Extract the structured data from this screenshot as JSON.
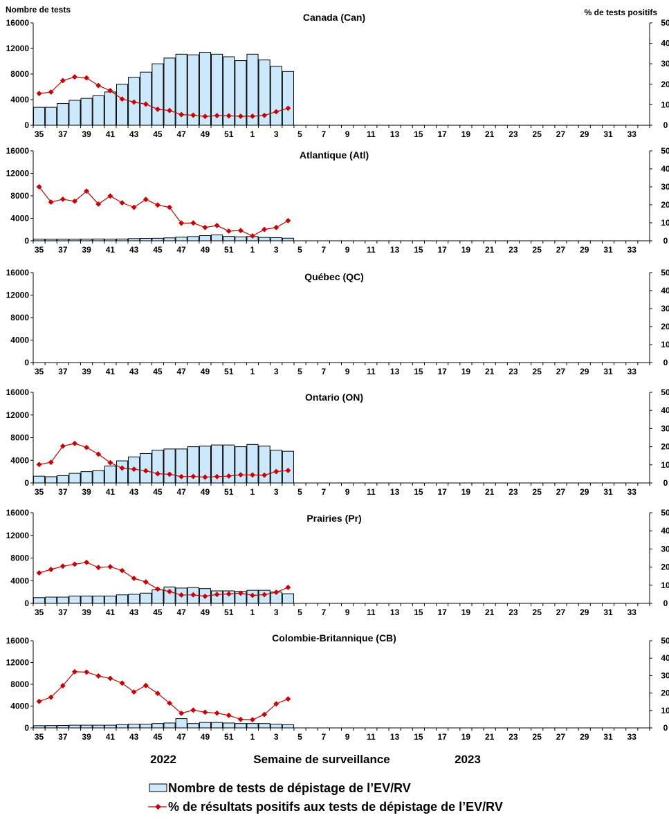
{
  "labels": {
    "left_axis": "Nombre de tests",
    "right_axis": "% de tests positifs",
    "year_left": "2022",
    "x_axis": "Semaine de surveillance",
    "year_right": "2023"
  },
  "legend": {
    "bars": "Nombre de tests de dépistage de l’EV/RV",
    "line": "% de résultats positifs aux tests de dépistage de l’EV/RV"
  },
  "colors": {
    "bar_fill": "#cce9fb",
    "bar_stroke": "#000000",
    "line": "#c00000",
    "marker": "#cc0000"
  },
  "week_ticks": [
    "35",
    "37",
    "39",
    "41",
    "43",
    "45",
    "47",
    "49",
    "51",
    "1",
    "3",
    "5",
    "7",
    "9",
    "11",
    "13",
    "15",
    "17",
    "19",
    "21",
    "23",
    "25",
    "27",
    "29",
    "31",
    "33"
  ],
  "left_ticks": [
    "0",
    "4000",
    "8000",
    "12000",
    "16000"
  ],
  "right_ticks": [
    "0",
    "10",
    "20",
    "30",
    "40",
    "50"
  ],
  "chart_data": [
    {
      "type": "bar+line",
      "title": "Canada (Can)",
      "weeks": [
        "35",
        "36",
        "37",
        "38",
        "39",
        "40",
        "41",
        "42",
        "43",
        "44",
        "45",
        "46",
        "47",
        "48",
        "49",
        "50",
        "51",
        "52",
        "1",
        "2",
        "3",
        "4"
      ],
      "tests": [
        2800,
        2800,
        3400,
        3900,
        4200,
        4600,
        5200,
        6400,
        7500,
        8300,
        9600,
        10500,
        11100,
        11000,
        11400,
        11100,
        10700,
        10100,
        11100,
        10200,
        9200,
        8400
      ],
      "pct_positive": [
        15.5,
        16.2,
        21.8,
        23.6,
        23.1,
        19.4,
        16.9,
        12.8,
        11.3,
        10.3,
        7.8,
        7.2,
        5.2,
        4.9,
        4.3,
        4.7,
        4.6,
        4.4,
        4.4,
        4.8,
        6.6,
        8.3
      ],
      "ylim_left": [
        0,
        16000
      ],
      "ylim_right": [
        0,
        50
      ]
    },
    {
      "type": "bar+line",
      "title": "Atlantique (Atl)",
      "weeks": [
        "35",
        "36",
        "37",
        "38",
        "39",
        "40",
        "41",
        "42",
        "43",
        "44",
        "45",
        "46",
        "47",
        "48",
        "49",
        "50",
        "51",
        "52",
        "1",
        "2",
        "3",
        "4"
      ],
      "tests": [
        300,
        280,
        290,
        280,
        300,
        320,
        300,
        320,
        390,
        430,
        450,
        520,
        650,
        750,
        920,
        1050,
        780,
        700,
        760,
        600,
        560,
        460
      ],
      "pct_positive": [
        30.0,
        21.5,
        23.1,
        22.0,
        27.6,
        20.4,
        24.9,
        21.1,
        18.6,
        23.0,
        19.9,
        18.6,
        9.8,
        9.9,
        7.4,
        8.5,
        5.4,
        5.7,
        2.7,
        6.3,
        7.4,
        11.2
      ],
      "ylim_left": [
        0,
        16000
      ],
      "ylim_right": [
        0,
        50
      ]
    },
    {
      "type": "bar+line",
      "title": "Québec (QC)",
      "weeks": [],
      "tests": [],
      "pct_positive": [],
      "ylim_left": [
        0,
        16000
      ],
      "ylim_right": [
        0,
        50
      ]
    },
    {
      "type": "bar+line",
      "title": "Ontario (ON)",
      "weeks": [
        "35",
        "36",
        "37",
        "38",
        "39",
        "40",
        "41",
        "42",
        "43",
        "44",
        "45",
        "46",
        "47",
        "48",
        "49",
        "50",
        "51",
        "52",
        "1",
        "2",
        "3",
        "4"
      ],
      "tests": [
        1200,
        1100,
        1300,
        1700,
        2000,
        2200,
        3000,
        3900,
        4600,
        5200,
        5800,
        6000,
        6000,
        6400,
        6500,
        6700,
        6700,
        6400,
        6800,
        6500,
        5800,
        5600
      ],
      "pct_positive": [
        10.2,
        11.4,
        20.3,
        21.8,
        19.6,
        15.9,
        11.2,
        8.2,
        7.6,
        6.7,
        5.1,
        4.8,
        3.5,
        3.6,
        3.2,
        3.5,
        3.8,
        4.5,
        4.4,
        4.3,
        6.3,
        6.9
      ],
      "ylim_left": [
        0,
        16000
      ],
      "ylim_right": [
        0,
        50
      ]
    },
    {
      "type": "bar+line",
      "title": "Prairies (Pr)",
      "weeks": [
        "35",
        "36",
        "37",
        "38",
        "39",
        "40",
        "41",
        "42",
        "43",
        "44",
        "45",
        "46",
        "47",
        "48",
        "49",
        "50",
        "51",
        "52",
        "1",
        "2",
        "3",
        "4"
      ],
      "tests": [
        1000,
        1100,
        1100,
        1300,
        1300,
        1300,
        1300,
        1500,
        1600,
        1800,
        2400,
        2900,
        2700,
        2800,
        2600,
        2200,
        2200,
        2100,
        2300,
        2300,
        2000,
        1700
      ],
      "pct_positive": [
        16.8,
        18.7,
        20.5,
        21.6,
        22.6,
        19.8,
        20.2,
        18.1,
        13.8,
        11.8,
        7.9,
        6.5,
        4.6,
        4.7,
        3.9,
        4.9,
        5.2,
        5.6,
        4.4,
        4.8,
        6.1,
        8.8
      ],
      "ylim_left": [
        0,
        16000
      ],
      "ylim_right": [
        0,
        50
      ]
    },
    {
      "type": "bar+line",
      "title": "Colombie-Britannique (CB)",
      "weeks": [
        "35",
        "36",
        "37",
        "38",
        "39",
        "40",
        "41",
        "42",
        "43",
        "44",
        "45",
        "46",
        "47",
        "48",
        "49",
        "50",
        "51",
        "52",
        "1",
        "2",
        "3",
        "4"
      ],
      "tests": [
        400,
        420,
        450,
        500,
        500,
        500,
        500,
        600,
        700,
        700,
        800,
        900,
        1700,
        800,
        1000,
        1000,
        900,
        800,
        800,
        800,
        700,
        600
      ],
      "pct_positive": [
        15.2,
        17.6,
        24.2,
        32.2,
        32.0,
        29.8,
        28.4,
        25.7,
        20.6,
        24.3,
        19.8,
        14.2,
        8.4,
        10.2,
        9.0,
        8.5,
        7.2,
        4.9,
        4.7,
        7.7,
        13.8,
        16.6
      ],
      "ylim_left": [
        0,
        16000
      ],
      "ylim_right": [
        0,
        50
      ]
    }
  ]
}
